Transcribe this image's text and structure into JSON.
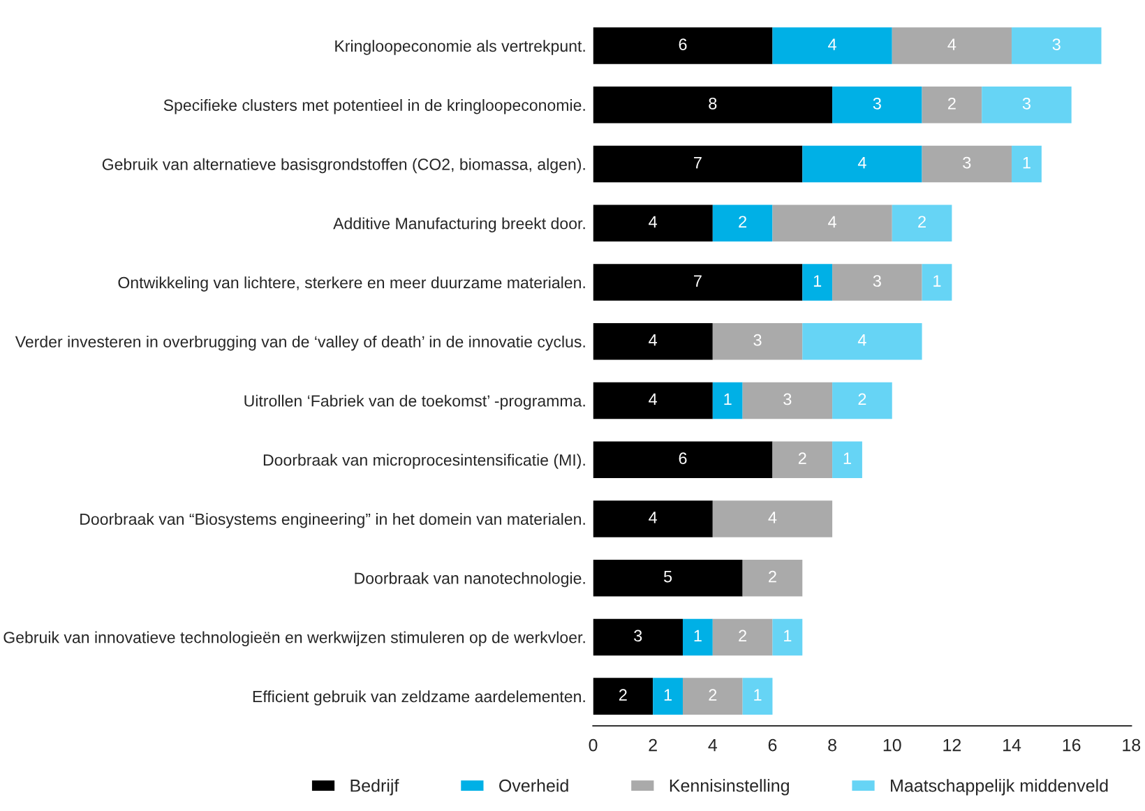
{
  "chart_data": {
    "type": "bar",
    "orientation": "horizontal",
    "stacked": true,
    "data_labels": true,
    "categories": [
      "Kringloopeconomie als vertrekpunt.",
      "Specifieke clusters met potentieel in de kringloopeconomie.",
      "Gebruik van alternatieve basisgrondstoffen (CO2, biomassa, algen).",
      "Additive Manufacturing breekt door.",
      "Ontwikkeling van lichtere, sterkere en meer duurzame materialen.",
      "Verder investeren in overbrugging van de ‘valley of death’ in de innovatie cyclus.",
      "Uitrollen ‘Fabriek van de toekomst’ -programma.",
      "Doorbraak van microprocesintensificatie (MI).",
      "Doorbraak van “Biosystems engineering” in het domein van materialen.",
      "Doorbraak van nanotechnologie.",
      "Gebruik van innovatieve technologieën en werkwijzen stimuleren op de werkvloer.",
      "Efficient gebruik van zeldzame aardelementen."
    ],
    "series": [
      {
        "name": "Bedrijf",
        "color": "#000000",
        "values": [
          6,
          8,
          7,
          4,
          7,
          4,
          4,
          6,
          4,
          5,
          3,
          2
        ]
      },
      {
        "name": "Overheid",
        "color": "#00b0e6",
        "values": [
          4,
          3,
          4,
          2,
          1,
          null,
          1,
          null,
          null,
          null,
          1,
          1
        ]
      },
      {
        "name": "Kennisinstelling",
        "color": "#aaaaaa",
        "values": [
          4,
          2,
          3,
          4,
          3,
          3,
          3,
          2,
          4,
          2,
          2,
          2
        ]
      },
      {
        "name": "Maatschappelijk middenveld",
        "color": "#66d4f5",
        "values": [
          3,
          3,
          1,
          2,
          1,
          4,
          2,
          1,
          null,
          null,
          1,
          1
        ]
      }
    ],
    "xlim": [
      0,
      18
    ],
    "xticks": [
      0,
      2,
      4,
      6,
      8,
      10,
      12,
      14,
      16,
      18
    ],
    "grid": false,
    "legend": "bottom"
  }
}
